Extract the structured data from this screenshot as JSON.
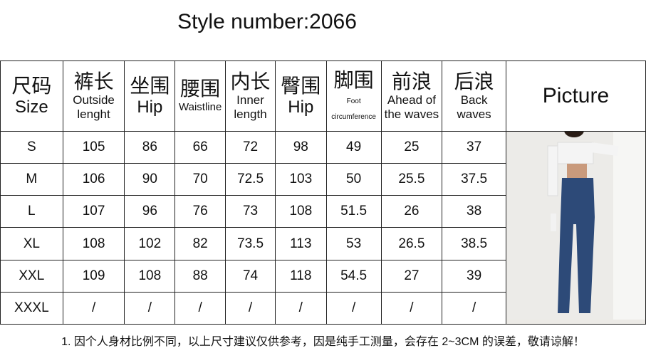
{
  "title": "Style number:2066",
  "headers": [
    {
      "cn": "尺码",
      "en": "Size"
    },
    {
      "cn": "裤长",
      "en": "Outside lenght"
    },
    {
      "cn": "坐围",
      "en": "Hip"
    },
    {
      "cn": "腰围",
      "en": "Waistline"
    },
    {
      "cn": "内长",
      "en": "Inner length"
    },
    {
      "cn": "臀围",
      "en": "Hip"
    },
    {
      "cn": "脚围",
      "en": "Foot circumference"
    },
    {
      "cn": "前浪",
      "en": "Ahead of the waves"
    },
    {
      "cn": "后浪",
      "en": "Back waves"
    }
  ],
  "picture_label": "Picture",
  "rows": [
    [
      "S",
      "105",
      "86",
      "66",
      "72",
      "98",
      "49",
      "25",
      "37"
    ],
    [
      "M",
      "106",
      "90",
      "70",
      "72.5",
      "103",
      "50",
      "25.5",
      "37.5"
    ],
    [
      "L",
      "107",
      "96",
      "76",
      "73",
      "108",
      "51.5",
      "26",
      "38"
    ],
    [
      "XL",
      "108",
      "102",
      "82",
      "73.5",
      "113",
      "53",
      "26.5",
      "38.5"
    ],
    [
      "XXL",
      "109",
      "108",
      "88",
      "74",
      "118",
      "54.5",
      "27",
      "39"
    ],
    [
      "XXXL",
      "/",
      "/",
      "/",
      "/",
      "/",
      "/",
      "/",
      "/"
    ]
  ],
  "note": "1. 因个人身材比例不同，以上尺寸建议仅供参考，因是纯手工测量，会存在 2~3CM 的误差，敬请谅解！",
  "colors": {
    "denim": "#2d4a78",
    "top": "#f4f4f4"
  }
}
